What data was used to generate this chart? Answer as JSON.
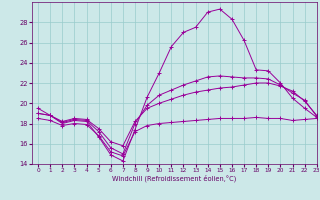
{
  "xlabel": "Windchill (Refroidissement éolien,°C)",
  "background_color": "#cce8e8",
  "grid_color": "#99cccc",
  "line_color": "#990099",
  "hours": [
    0,
    1,
    2,
    3,
    4,
    5,
    6,
    7,
    8,
    9,
    10,
    11,
    12,
    13,
    14,
    15,
    16,
    17,
    18,
    19,
    20,
    21,
    22,
    23
  ],
  "line1": [
    19.5,
    18.8,
    18.0,
    18.3,
    18.2,
    16.7,
    14.9,
    14.3,
    17.4,
    20.6,
    23.0,
    25.6,
    27.0,
    27.5,
    29.0,
    29.3,
    28.3,
    26.2,
    23.3,
    23.2,
    22.0,
    20.5,
    19.5,
    18.6
  ],
  "line2": [
    19.0,
    18.8,
    18.1,
    18.4,
    18.3,
    17.2,
    15.6,
    15.0,
    18.0,
    19.8,
    20.8,
    21.3,
    21.8,
    22.2,
    22.6,
    22.7,
    22.6,
    22.5,
    22.5,
    22.4,
    21.8,
    21.0,
    20.3,
    18.7
  ],
  "line3": [
    19.0,
    18.8,
    18.2,
    18.5,
    18.4,
    17.5,
    16.2,
    15.8,
    18.2,
    19.5,
    20.0,
    20.4,
    20.8,
    21.1,
    21.3,
    21.5,
    21.6,
    21.8,
    22.0,
    22.0,
    21.7,
    21.2,
    20.2,
    18.8
  ],
  "line4": [
    18.5,
    18.3,
    17.8,
    18.0,
    17.9,
    16.8,
    15.2,
    14.8,
    17.2,
    17.8,
    18.0,
    18.1,
    18.2,
    18.3,
    18.4,
    18.5,
    18.5,
    18.5,
    18.6,
    18.5,
    18.5,
    18.3,
    18.4,
    18.5
  ],
  "ylim": [
    14,
    30
  ],
  "xlim": [
    -0.5,
    23
  ],
  "yticks": [
    14,
    16,
    18,
    20,
    22,
    24,
    26,
    28
  ],
  "xticks": [
    0,
    1,
    2,
    3,
    4,
    5,
    6,
    7,
    8,
    9,
    10,
    11,
    12,
    13,
    14,
    15,
    16,
    17,
    18,
    19,
    20,
    21,
    22,
    23
  ]
}
